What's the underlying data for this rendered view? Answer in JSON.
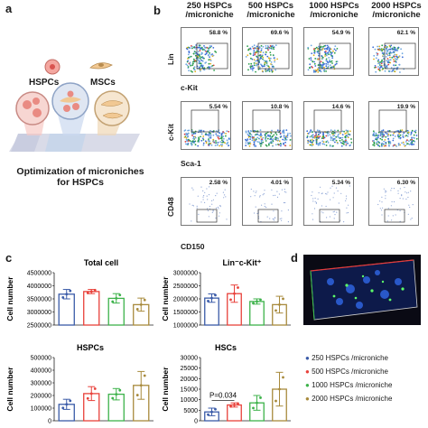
{
  "panel_a": {
    "letter": "a",
    "cell_label_1": "HSPCs",
    "cell_label_2": "MSCs",
    "caption": "Optimization of microniches for HSPCs"
  },
  "panel_b": {
    "letter": "b",
    "columns": [
      "250 HSPCs /microniche",
      "500 HSPCs /microniche",
      "1000 HSPCs /microniche",
      "2000 HSPCs /microniche"
    ],
    "rows": [
      {
        "y_label": "Lin",
        "x_label": "c-Kit",
        "percents": [
          "58.8 %",
          "69.6 %",
          "54.9 %",
          "62.1 %"
        ]
      },
      {
        "y_label": "c-Kit",
        "x_label": "Sca-1",
        "percents": [
          "5.54 %",
          "10.8 %",
          "14.6 %",
          "19.9 %"
        ]
      },
      {
        "y_label": "CD48",
        "x_label": "CD150",
        "percents": [
          "2.58 %",
          "4.01 %",
          "5.34 %",
          "6.30 %"
        ]
      }
    ]
  },
  "panel_c": {
    "letter": "c",
    "y_axis_label": "Cell number"
  },
  "panel_d": {
    "letter": "d"
  },
  "legend": {
    "items": [
      {
        "label": "250 HSPCs /microniche",
        "color": "#3a5ba8"
      },
      {
        "label": "500 HSPCs /microniche",
        "color": "#e8413a"
      },
      {
        "label": "1000 HSPCs /microniche",
        "color": "#3db24a"
      },
      {
        "label": "2000 HSPCs /microniche",
        "color": "#a88a3c"
      }
    ]
  },
  "chart_data": [
    {
      "type": "bar",
      "title": "Total cell",
      "categories": [
        "250",
        "500",
        "1000",
        "2000"
      ],
      "values": [
        3680000,
        3780000,
        3520000,
        3280000
      ],
      "errors": [
        180000,
        80000,
        180000,
        250000
      ],
      "ylim": [
        2500000,
        4500000
      ],
      "yticks": [
        "2500000",
        "3000000",
        "3500000",
        "4000000",
        "4500000"
      ],
      "ylabel": "Cell number"
    },
    {
      "type": "bar",
      "title": "Lin⁻c-Kit⁺",
      "categories": [
        "250",
        "500",
        "1000",
        "2000"
      ],
      "values": [
        2030000,
        2200000,
        1900000,
        1780000
      ],
      "errors": [
        160000,
        330000,
        100000,
        320000
      ],
      "ylim": [
        1000000,
        3000000
      ],
      "yticks": [
        "1000000",
        "1500000",
        "2000000",
        "2500000",
        "3000000"
      ],
      "ylabel": "Cell number"
    },
    {
      "type": "bar",
      "title": "HSPCs",
      "categories": [
        "250",
        "500",
        "1000",
        "2000"
      ],
      "values": [
        130000,
        215000,
        210000,
        280000
      ],
      "errors": [
        40000,
        55000,
        45000,
        110000
      ],
      "ylim": [
        0,
        500000
      ],
      "yticks": [
        "0",
        "100000",
        "200000",
        "300000",
        "400000",
        "500000"
      ],
      "ylabel": "Cell number"
    },
    {
      "type": "bar",
      "title": "HSCs",
      "categories": [
        "250",
        "500",
        "1000",
        "2000"
      ],
      "values": [
        4200,
        7500,
        8500,
        15000
      ],
      "errors": [
        1800,
        1000,
        3500,
        8000
      ],
      "ylim": [
        0,
        30000
      ],
      "yticks": [
        "0",
        "5000",
        "10000",
        "15000",
        "20000",
        "25000",
        "30000"
      ],
      "ylabel": "Cell number",
      "annotation": "P=0.034"
    }
  ]
}
